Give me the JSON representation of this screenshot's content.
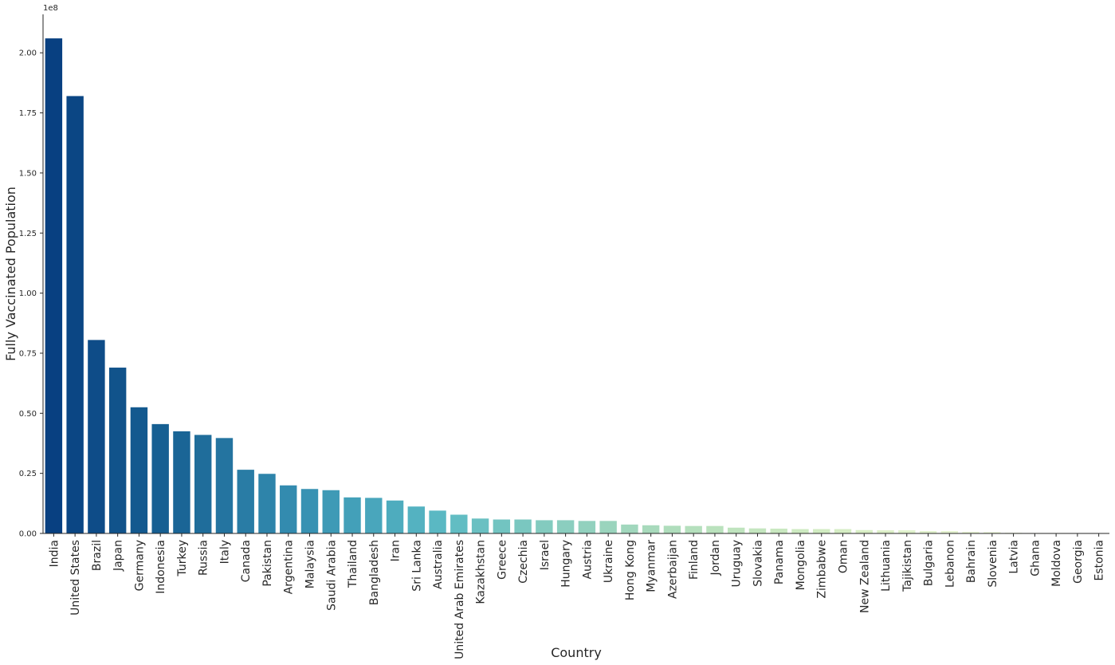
{
  "chart_data": {
    "type": "bar",
    "title": "",
    "xlabel": "Country",
    "ylabel": "Fully Vaccinated Population",
    "y_offset_label": "1e8",
    "ylim": [
      0,
      2.16
    ],
    "yticks": [
      0.0,
      0.25,
      0.5,
      0.75,
      1.0,
      1.25,
      1.5,
      1.75,
      2.0
    ],
    "ytick_labels": [
      "0.00",
      "0.25",
      "0.50",
      "0.75",
      "1.00",
      "1.25",
      "1.50",
      "1.75",
      "2.00"
    ],
    "grid": false,
    "legend": "none",
    "palette": "GnBu_r",
    "categories": [
      "India",
      "United States",
      "Brazil",
      "Japan",
      "Germany",
      "Indonesia",
      "Turkey",
      "Russia",
      "Italy",
      "Canada",
      "Pakistan",
      "Argentina",
      "Malaysia",
      "Saudi Arabia",
      "Thailand",
      "Bangladesh",
      "Iran",
      "Sri Lanka",
      "Australia",
      "United Arab Emirates",
      "Kazakhstan",
      "Greece",
      "Czechia",
      "Israel",
      "Hungary",
      "Austria",
      "Ukraine",
      "Hong Kong",
      "Myanmar",
      "Azerbaijan",
      "Finland",
      "Jordan",
      "Uruguay",
      "Slovakia",
      "Panama",
      "Mongolia",
      "Zimbabwe",
      "Oman",
      "New Zealand",
      "Lithuania",
      "Tajikistan",
      "Bulgaria",
      "Lebanon",
      "Bahrain",
      "Slovenia",
      "Latvia",
      "Ghana",
      "Moldova",
      "Georgia",
      "Estonia"
    ],
    "values": [
      2.06,
      1.82,
      0.805,
      0.69,
      0.525,
      0.455,
      0.425,
      0.41,
      0.397,
      0.265,
      0.248,
      0.2,
      0.185,
      0.18,
      0.15,
      0.148,
      0.137,
      0.112,
      0.095,
      0.078,
      0.062,
      0.058,
      0.058,
      0.055,
      0.055,
      0.052,
      0.052,
      0.037,
      0.034,
      0.032,
      0.031,
      0.031,
      0.024,
      0.021,
      0.02,
      0.018,
      0.018,
      0.018,
      0.014,
      0.013,
      0.013,
      0.01,
      0.01,
      0.007,
      0.006,
      0.003,
      0.002,
      0.002,
      0.001,
      0.0008
    ],
    "colors": [
      "#084081",
      "#0b4684",
      "#0e4c88",
      "#11538b",
      "#13598f",
      "#165f92",
      "#1a6596",
      "#1f6d9b",
      "#2474a0",
      "#297ca5",
      "#2e84aa",
      "#338baf",
      "#3892b3",
      "#3e9ab6",
      "#43a0b9",
      "#49a6bc",
      "#4eacbe",
      "#54b2c1",
      "#5ab8c3",
      "#62bdc3",
      "#6ac0c2",
      "#72c4c1",
      "#7ac7c0",
      "#83cbbf",
      "#8bcebf",
      "#92d1be",
      "#9ad4bd",
      "#a1d7bd",
      "#a8dabc",
      "#afddbc",
      "#b5e0bd",
      "#bae2bd",
      "#bfe4be",
      "#c4e6bf",
      "#c9e8c0",
      "#cdeac1",
      "#d1ecc2",
      "#d5edc4",
      "#d9efc6",
      "#ddf0c9",
      "#e0f2cc",
      "#e3f3cf",
      "#e6f4d2",
      "#e9f5d5",
      "#ecf7d9",
      "#eef8dc",
      "#f0f9df",
      "#f2fae3",
      "#f4fbe6",
      "#f7fcf0"
    ]
  }
}
